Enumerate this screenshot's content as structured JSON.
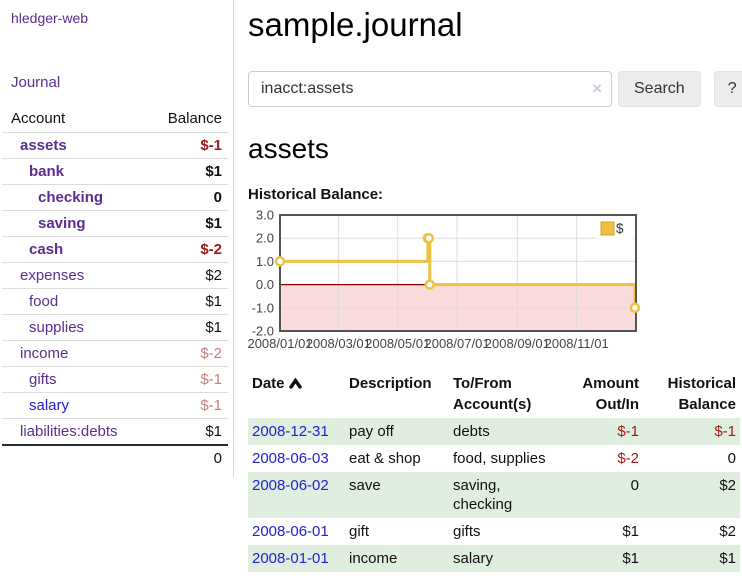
{
  "brand": "hledger-web",
  "sidebar": {
    "journal_link": "Journal",
    "header": {
      "account": "Account",
      "balance": "Balance"
    },
    "accounts": [
      {
        "name": "assets",
        "balance": "$-1"
      },
      {
        "name": "bank",
        "balance": "$1"
      },
      {
        "name": "checking",
        "balance": "0"
      },
      {
        "name": "saving",
        "balance": "$1"
      },
      {
        "name": "cash",
        "balance": "$-2"
      },
      {
        "name": "expenses",
        "balance": "$2"
      },
      {
        "name": "food",
        "balance": "$1"
      },
      {
        "name": "supplies",
        "balance": "$1"
      },
      {
        "name": "income",
        "balance": "$-2"
      },
      {
        "name": "gifts",
        "balance": "$-1"
      },
      {
        "name": "salary",
        "balance": "$-1"
      },
      {
        "name": "liabilities:debts",
        "balance": "$1"
      }
    ],
    "total": "0"
  },
  "header": {
    "title": "sample.journal"
  },
  "search": {
    "value": "inacct:assets",
    "clear_icon": "×",
    "button_label": "Search",
    "help_label": "?"
  },
  "main": {
    "account_title": "assets",
    "chart_label": "Historical Balance:"
  },
  "chart_data": {
    "type": "line",
    "step": true,
    "title": "Historical Balance",
    "series": [
      {
        "name": "$",
        "color": "#edc240",
        "points": [
          [
            "2008-01-01",
            1.0
          ],
          [
            "2008-06-01",
            2.0
          ],
          [
            "2008-06-02",
            2.0
          ],
          [
            "2008-06-03",
            0.0
          ],
          [
            "2008-12-31",
            -1.0
          ]
        ]
      }
    ],
    "xlim": [
      "2008-01-01",
      "2009-01-01"
    ],
    "ylim": [
      -2.0,
      3.0
    ],
    "yticks": [
      3.0,
      2.0,
      1.0,
      0.0,
      -1.0,
      -2.0
    ],
    "xticks": [
      {
        "date": "2008-01-01",
        "label": "2008/01/01"
      },
      {
        "date": "2008-03-01",
        "label": "2008/03/01"
      },
      {
        "date": "2008-05-01",
        "label": "2008/05/01"
      },
      {
        "date": "2008-07-01",
        "label": "2008/07/01"
      },
      {
        "date": "2008-09-01",
        "label": "2008/09/01"
      },
      {
        "date": "2008-11-01",
        "label": "2008/11/01"
      }
    ],
    "legend_position": "top-right",
    "grid": true,
    "negative_region_fill": "#fbdcdc",
    "zero_line_color": "#8b0000",
    "border_color": "#545454",
    "grid_color": "#dddddd"
  },
  "table": {
    "headers": {
      "date": "Date",
      "description": "Description",
      "accounts": "To/From Account(s)",
      "amount": "Amount Out/In",
      "balance": "Historical Balance"
    },
    "rows": [
      {
        "date": "2008-12-31",
        "description": "pay off",
        "accounts": "debts",
        "amount": "$-1",
        "balance": "$-1"
      },
      {
        "date": "2008-06-03",
        "description": "eat & shop",
        "accounts": "food, supplies",
        "amount": "$-2",
        "balance": "0"
      },
      {
        "date": "2008-06-02",
        "description": "save",
        "accounts": "saving, checking",
        "amount": "0",
        "balance": "$2"
      },
      {
        "date": "2008-06-01",
        "description": "gift",
        "accounts": "gifts",
        "amount": "$1",
        "balance": "$2"
      },
      {
        "date": "2008-01-01",
        "description": "income",
        "accounts": "salary",
        "amount": "$1",
        "balance": "$1"
      }
    ]
  }
}
